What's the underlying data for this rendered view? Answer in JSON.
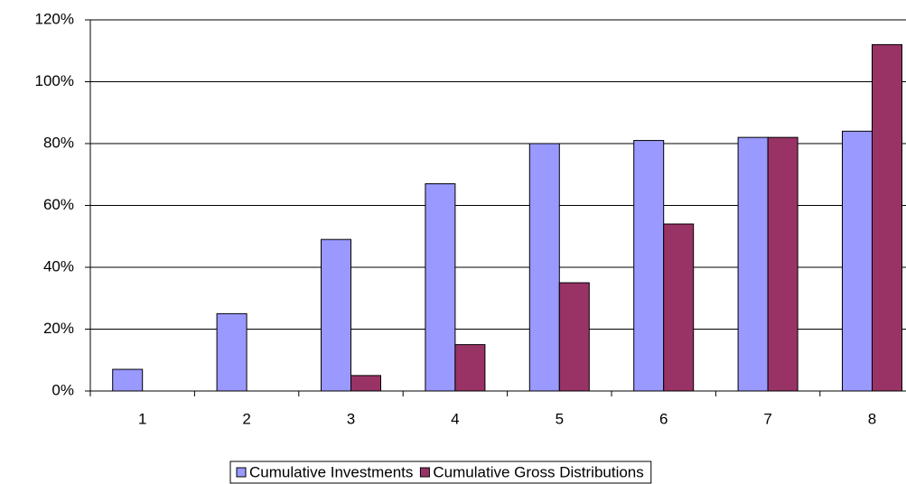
{
  "chart_data": {
    "type": "bar",
    "categories": [
      "1",
      "2",
      "3",
      "4",
      "5",
      "6",
      "7",
      "8"
    ],
    "series": [
      {
        "name": "Cumulative Investments",
        "color": "#9999ff",
        "values": [
          7,
          25,
          49,
          67,
          80,
          81,
          82,
          84
        ]
      },
      {
        "name": "Cumulative Gross Distributions",
        "color": "#993366",
        "values": [
          0,
          0,
          5,
          15,
          35,
          54,
          82,
          112
        ]
      }
    ],
    "ylim": [
      0,
      120
    ],
    "yticks": [
      {
        "value": 0,
        "label": "0%"
      },
      {
        "value": 20,
        "label": "20%"
      },
      {
        "value": 40,
        "label": "40%"
      },
      {
        "value": 60,
        "label": "60%"
      },
      {
        "value": 80,
        "label": "80%"
      },
      {
        "value": 100,
        "label": "100%"
      },
      {
        "value": 120,
        "label": "120%"
      }
    ],
    "grid": true,
    "legend": "bottom"
  }
}
